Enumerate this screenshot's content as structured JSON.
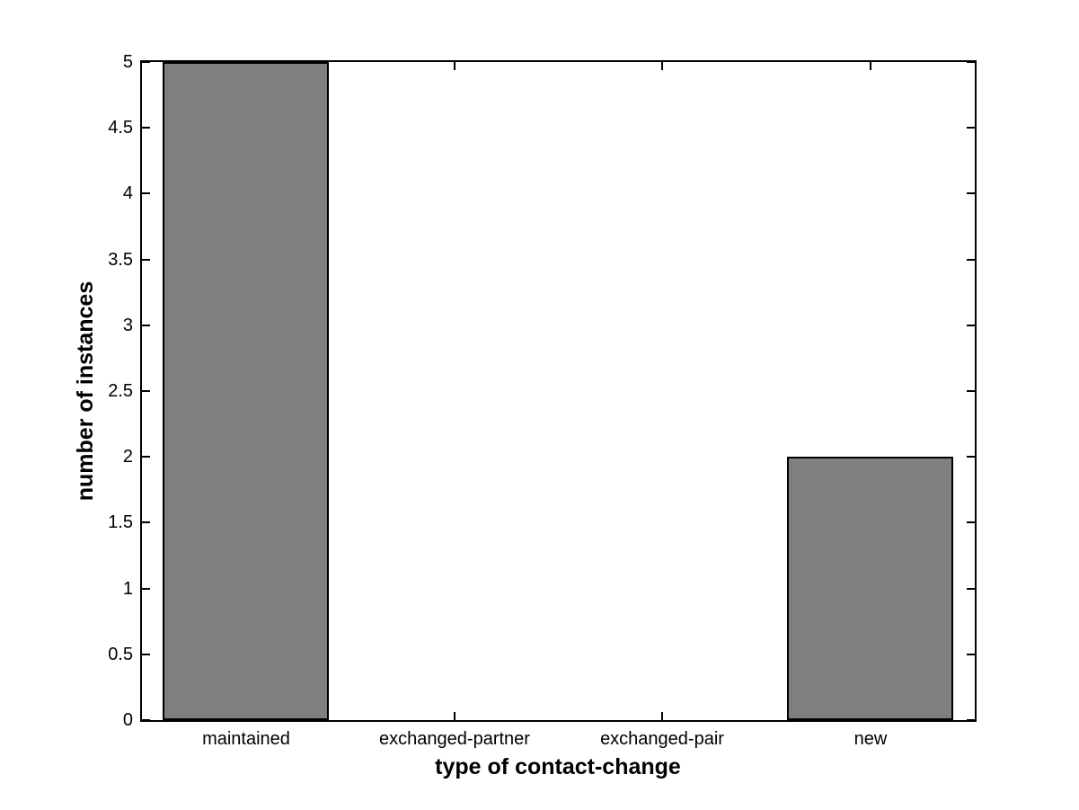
{
  "figure": {
    "background": "#ffffff"
  },
  "chart_data": {
    "type": "bar",
    "title": "",
    "xlabel": "type of contact-change",
    "ylabel": "number of instances",
    "categories": [
      "maintained",
      "exchanged-partner",
      "exchanged-pair",
      "new"
    ],
    "values": [
      5,
      0,
      0,
      2
    ],
    "ylim": [
      0,
      5
    ],
    "yticks": [
      0,
      0.5,
      1,
      1.5,
      2,
      2.5,
      3,
      3.5,
      4,
      4.5,
      5
    ],
    "ytick_labels": [
      "0",
      "0.5",
      "1",
      "1.5",
      "2",
      "2.5",
      "3",
      "3.5",
      "4",
      "4.5",
      "5"
    ],
    "bar_width_fraction": 0.8,
    "bar_fill_color": "#7f7f7f",
    "bar_edge_color": "#000000",
    "axis_color": "#000000",
    "plot_background": "#ffffff",
    "grid": false,
    "legend_position": "none",
    "tick_direction": "in",
    "box": true
  }
}
